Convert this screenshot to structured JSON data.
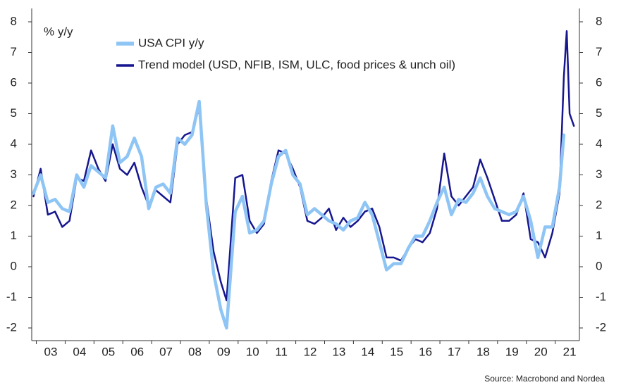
{
  "chart_data": {
    "type": "line",
    "y_unit_label": "% y/y",
    "source": "Source: Macrobond and Nordea",
    "x": [
      2002.9,
      2003.15,
      2003.4,
      2003.65,
      2003.9,
      2004.15,
      2004.4,
      2004.65,
      2004.9,
      2005.15,
      2005.4,
      2005.65,
      2005.9,
      2006.15,
      2006.4,
      2006.65,
      2006.9,
      2007.15,
      2007.4,
      2007.65,
      2007.9,
      2008.15,
      2008.4,
      2008.65,
      2008.9,
      2009.15,
      2009.4,
      2009.6,
      2009.9,
      2010.15,
      2010.4,
      2010.65,
      2010.9,
      2011.15,
      2011.4,
      2011.65,
      2011.9,
      2012.15,
      2012.4,
      2012.65,
      2012.9,
      2013.15,
      2013.4,
      2013.65,
      2013.9,
      2014.15,
      2014.4,
      2014.65,
      2014.9,
      2015.15,
      2015.4,
      2015.65,
      2015.9,
      2016.15,
      2016.4,
      2016.65,
      2016.9,
      2017.15,
      2017.4,
      2017.65,
      2017.9,
      2018.15,
      2018.4,
      2018.65,
      2018.9,
      2019.15,
      2019.4,
      2019.65,
      2019.9,
      2020.15,
      2020.4,
      2020.65,
      2020.9,
      2021.15,
      2021.3,
      2021.4,
      2021.5,
      2021.65
    ],
    "series": [
      {
        "name": "USA CPI y/y",
        "color": "#8ec5f5",
        "values": [
          2.4,
          3.0,
          2.1,
          2.2,
          1.9,
          1.8,
          3.0,
          2.6,
          3.3,
          3.1,
          2.9,
          4.6,
          3.4,
          3.6,
          4.2,
          3.6,
          1.9,
          2.6,
          2.7,
          2.4,
          4.2,
          4.0,
          4.3,
          5.4,
          2.0,
          -0.2,
          -1.4,
          -2.0,
          1.8,
          2.3,
          1.1,
          1.2,
          1.5,
          2.7,
          3.6,
          3.8,
          3.0,
          2.7,
          1.7,
          1.9,
          1.7,
          1.5,
          1.4,
          1.2,
          1.5,
          1.6,
          2.1,
          1.7,
          0.8,
          -0.1,
          0.1,
          0.1,
          0.6,
          1.0,
          1.0,
          1.5,
          2.1,
          2.6,
          1.7,
          2.2,
          2.1,
          2.4,
          2.9,
          2.3,
          1.9,
          1.8,
          1.7,
          1.8,
          2.3,
          1.5,
          0.3,
          1.3,
          1.3,
          2.6,
          4.3,
          null,
          null,
          null
        ]
      },
      {
        "name": "Trend model (USD, NFIB, ISM, ULC, food prices & unch oil)",
        "color": "#16168f",
        "values": [
          2.3,
          3.2,
          1.7,
          1.8,
          1.3,
          1.5,
          2.9,
          2.8,
          3.8,
          3.2,
          2.8,
          4.0,
          3.2,
          3.0,
          3.4,
          2.6,
          2.0,
          2.5,
          2.3,
          2.1,
          4.0,
          4.3,
          4.4,
          5.2,
          2.2,
          0.5,
          -0.5,
          -1.1,
          2.9,
          3.0,
          1.5,
          1.1,
          1.4,
          2.8,
          3.8,
          3.7,
          3.2,
          2.6,
          1.5,
          1.4,
          1.6,
          1.9,
          1.2,
          1.6,
          1.3,
          1.5,
          1.8,
          1.9,
          1.3,
          0.3,
          0.3,
          0.2,
          0.6,
          0.9,
          0.8,
          1.1,
          1.9,
          3.7,
          2.3,
          2.0,
          2.3,
          2.6,
          3.5,
          2.9,
          2.2,
          1.5,
          1.5,
          1.7,
          2.4,
          0.9,
          0.8,
          0.3,
          1.1,
          2.4,
          6.2,
          7.7,
          5.0,
          4.6
        ]
      }
    ],
    "xlim": [
      2002.84,
      2021.84
    ],
    "xticks": [
      {
        "value": 2003.5,
        "label": "03"
      },
      {
        "value": 2004.5,
        "label": "04"
      },
      {
        "value": 2005.5,
        "label": "05"
      },
      {
        "value": 2006.5,
        "label": "06"
      },
      {
        "value": 2007.5,
        "label": "07"
      },
      {
        "value": 2008.5,
        "label": "08"
      },
      {
        "value": 2009.5,
        "label": "09"
      },
      {
        "value": 2010.5,
        "label": "10"
      },
      {
        "value": 2011.5,
        "label": "11"
      },
      {
        "value": 2012.5,
        "label": "12"
      },
      {
        "value": 2013.5,
        "label": "13"
      },
      {
        "value": 2014.5,
        "label": "14"
      },
      {
        "value": 2015.5,
        "label": "15"
      },
      {
        "value": 2016.5,
        "label": "16"
      },
      {
        "value": 2017.5,
        "label": "17"
      },
      {
        "value": 2018.5,
        "label": "18"
      },
      {
        "value": 2019.5,
        "label": "19"
      },
      {
        "value": 2020.5,
        "label": "20"
      },
      {
        "value": 2021.5,
        "label": "21"
      }
    ],
    "ylim": [
      -2,
      8
    ],
    "yticks": [
      -2,
      -1,
      0,
      1,
      2,
      3,
      4,
      5,
      6,
      7,
      8
    ],
    "y2lim": [
      -2,
      8
    ],
    "y2ticks": [
      -2,
      -1,
      0,
      1,
      2,
      3,
      4,
      5,
      6,
      7,
      8
    ],
    "grid": false
  }
}
